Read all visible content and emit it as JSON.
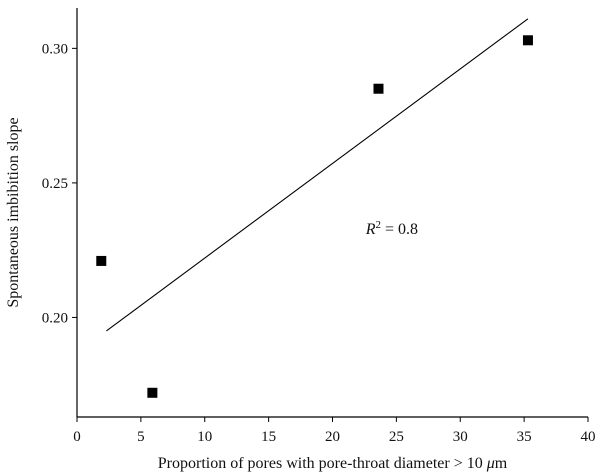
{
  "chart_data": {
    "type": "scatter",
    "title": "",
    "xlabel": "Proportion of pores with pore-throat diameter > 10 μm",
    "xlabel_parts": [
      "Proportion of pores with pore-throat diameter > 10 ",
      "μ",
      "m"
    ],
    "ylabel": "Spontaneous imbibition slope",
    "xlim": [
      0,
      40
    ],
    "ylim": [
      0.163,
      0.315
    ],
    "xticks": [
      0,
      5,
      10,
      15,
      20,
      25,
      30,
      35,
      40
    ],
    "yticks": [
      0.2,
      0.25,
      0.3
    ],
    "ytick_labels": [
      "0.20",
      "0.25",
      "0.30"
    ],
    "grid": false,
    "points": [
      {
        "x": 1.9,
        "y": 0.221
      },
      {
        "x": 5.9,
        "y": 0.172
      },
      {
        "x": 23.6,
        "y": 0.285
      },
      {
        "x": 35.3,
        "y": 0.303
      }
    ],
    "fit_line": {
      "x": [
        2.3,
        35.3
      ],
      "y": [
        0.195,
        0.311
      ]
    },
    "annotation": {
      "base": "R",
      "sup": "2",
      "rest": " = 0.8",
      "x": 22.6,
      "y": 0.231
    },
    "marker_color": "#000000"
  }
}
